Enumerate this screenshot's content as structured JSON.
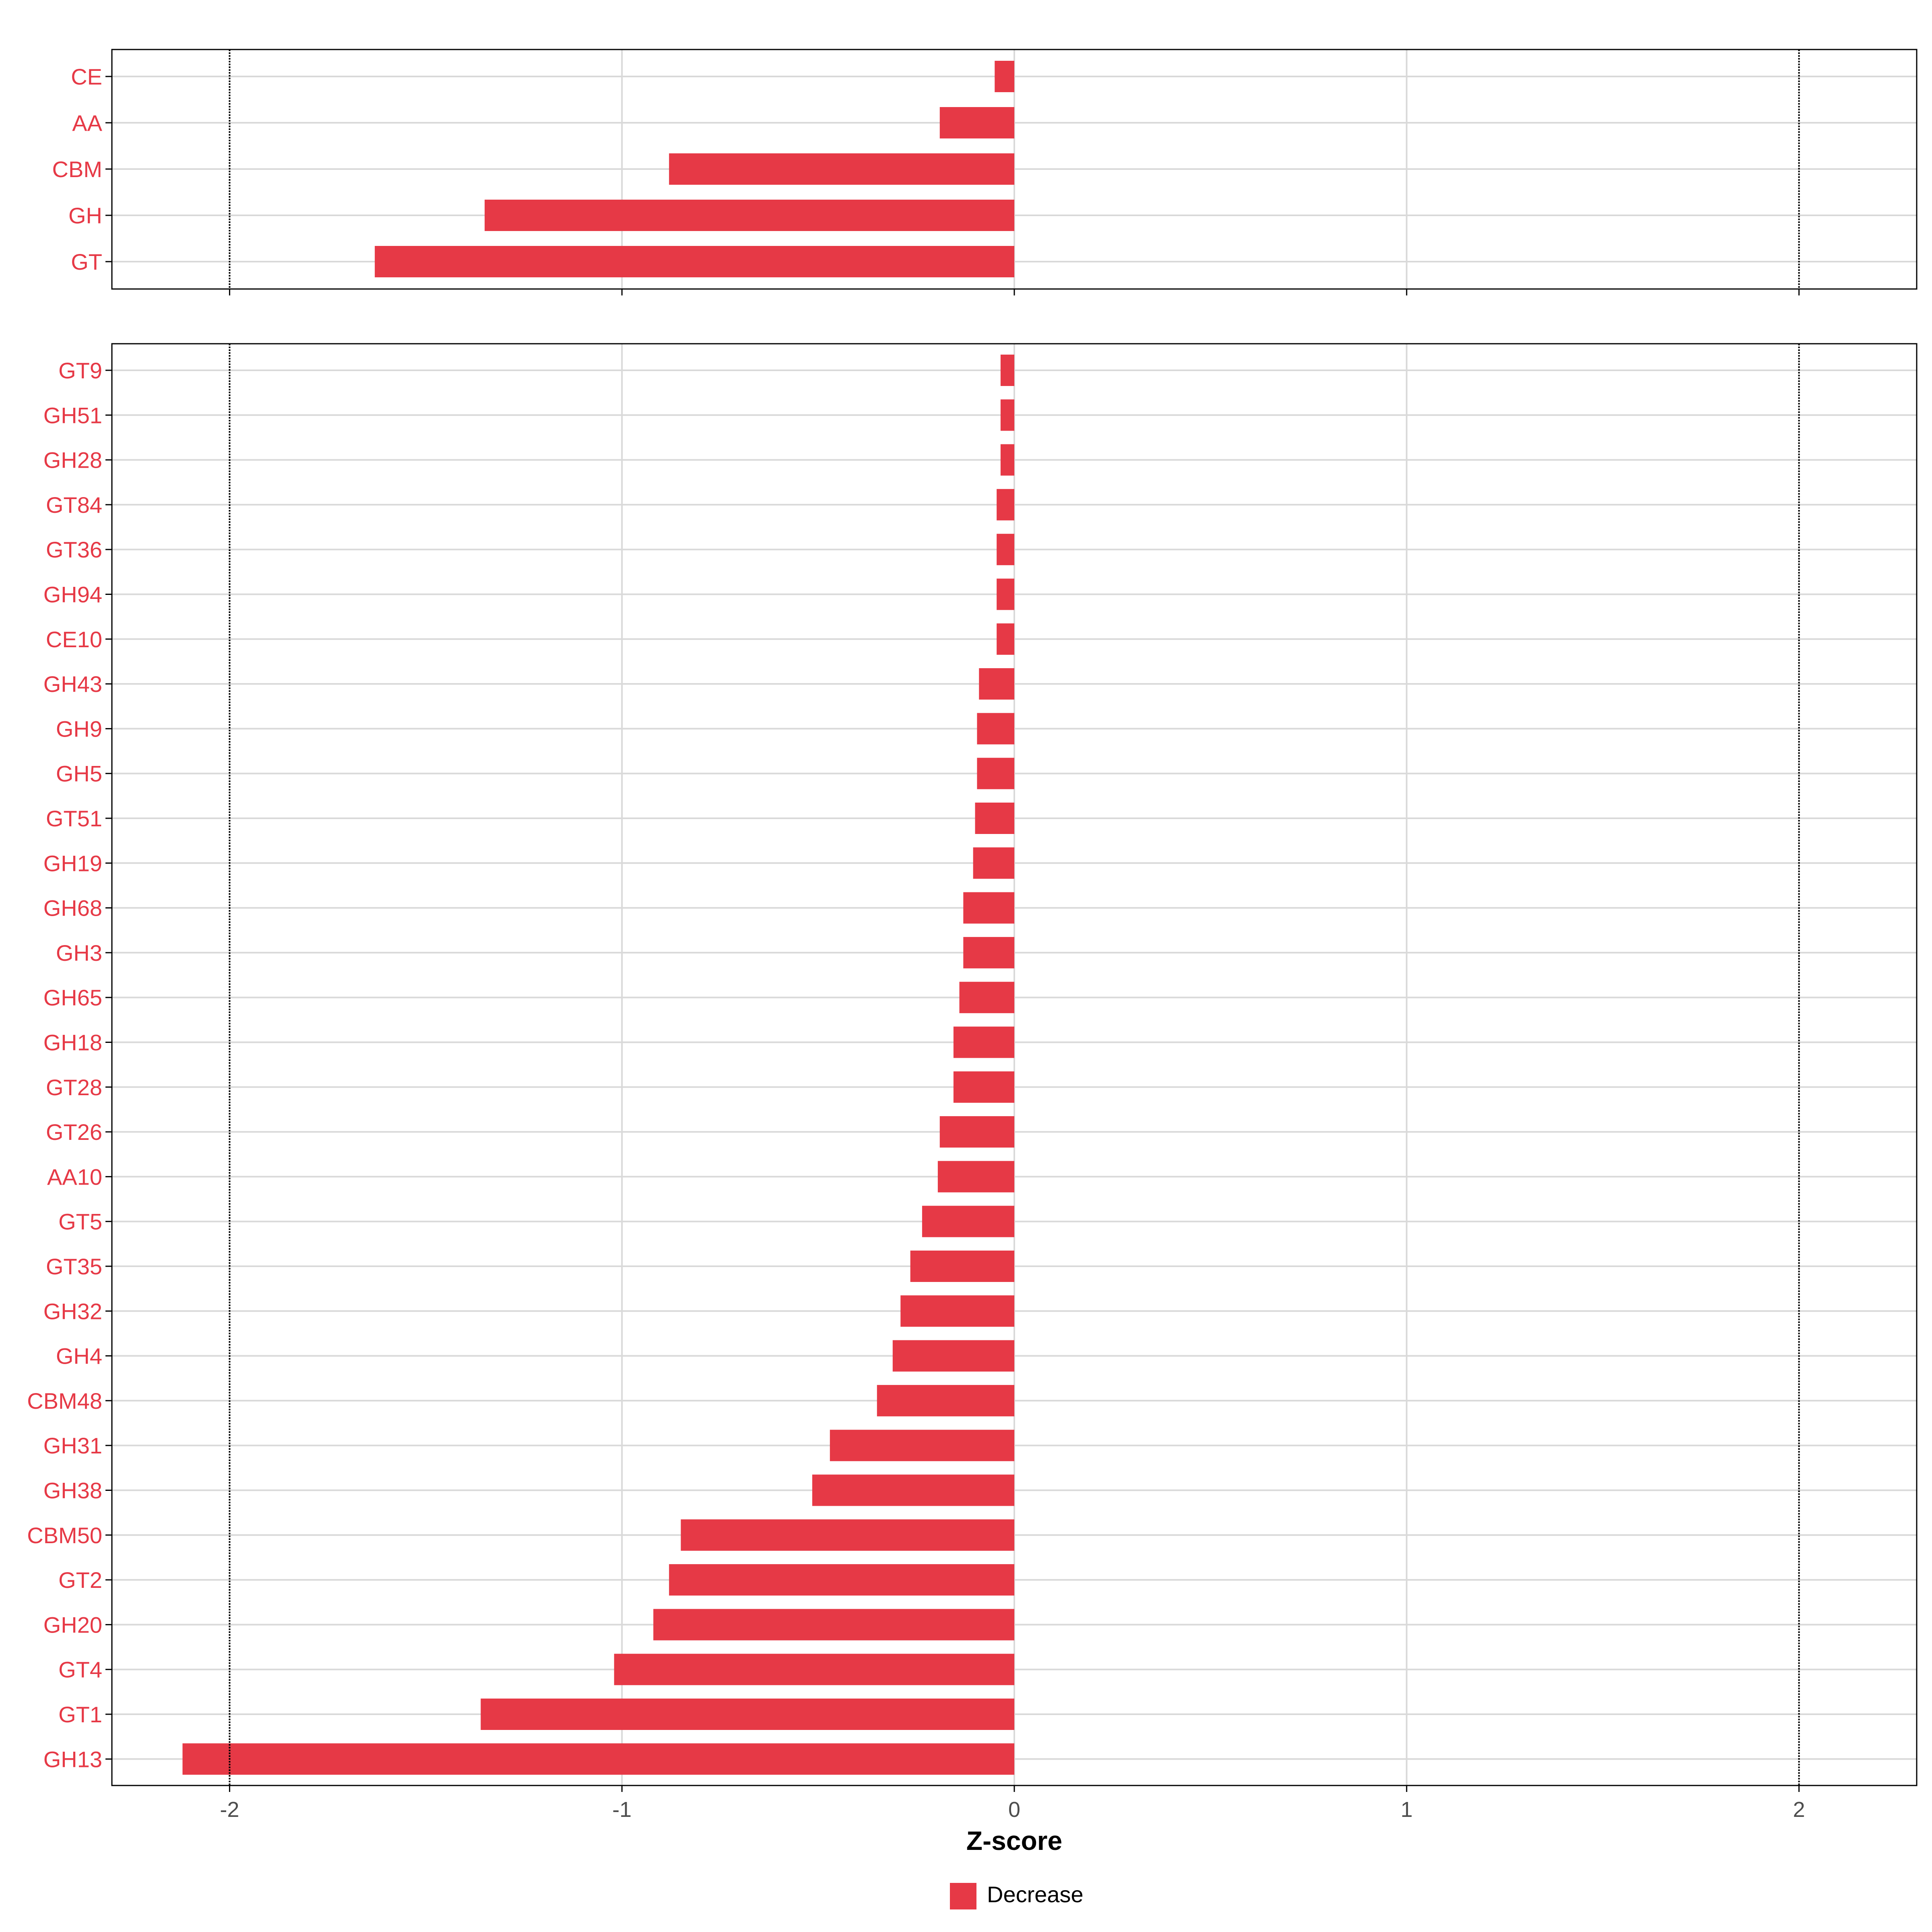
{
  "chart_data": [
    {
      "type": "bar",
      "orientation": "horizontal",
      "panel": "top",
      "categories": [
        "CE",
        "AA",
        "CBM",
        "GH",
        "GT"
      ],
      "series": [
        {
          "name": "Decrease",
          "values": [
            -0.05,
            -0.19,
            -0.88,
            -1.35,
            -1.63
          ]
        }
      ],
      "xlim": [
        -2.3,
        2.3
      ],
      "grid": true,
      "reference_lines": [
        -2,
        2
      ]
    },
    {
      "type": "bar",
      "orientation": "horizontal",
      "panel": "bottom",
      "categories": [
        "GT9",
        "GH51",
        "GH28",
        "GT84",
        "GT36",
        "GH94",
        "CE10",
        "GH43",
        "GH9",
        "GH5",
        "GT51",
        "GH19",
        "GH68",
        "GH3",
        "GH65",
        "GH18",
        "GT28",
        "GT26",
        "AA10",
        "GT5",
        "GT35",
        "GH32",
        "GH4",
        "CBM48",
        "GH31",
        "GH38",
        "CBM50",
        "GT2",
        "GH20",
        "GT4",
        "GT1",
        "GH13"
      ],
      "series": [
        {
          "name": "Decrease",
          "values": [
            -0.035,
            -0.035,
            -0.035,
            -0.045,
            -0.045,
            -0.045,
            -0.045,
            -0.09,
            -0.095,
            -0.095,
            -0.1,
            -0.105,
            -0.13,
            -0.13,
            -0.14,
            -0.155,
            -0.155,
            -0.19,
            -0.195,
            -0.235,
            -0.265,
            -0.29,
            -0.31,
            -0.35,
            -0.47,
            -0.515,
            -0.85,
            -0.88,
            -0.92,
            -1.02,
            -1.36,
            -2.12
          ]
        }
      ],
      "xlim": [
        -2.3,
        2.3
      ],
      "xticks": [
        "-2",
        "-1",
        "0",
        "1",
        "2"
      ],
      "xlabel": "Z-score",
      "grid": true,
      "reference_lines": [
        -2,
        2
      ]
    }
  ],
  "legend": {
    "position": "bottom",
    "entries": [
      {
        "label": "Decrease",
        "color": "#e63946"
      }
    ]
  },
  "colors": {
    "decrease": "#e63946",
    "label": "#e63946",
    "grid": "#d9d9d9",
    "axis": "#000000"
  }
}
